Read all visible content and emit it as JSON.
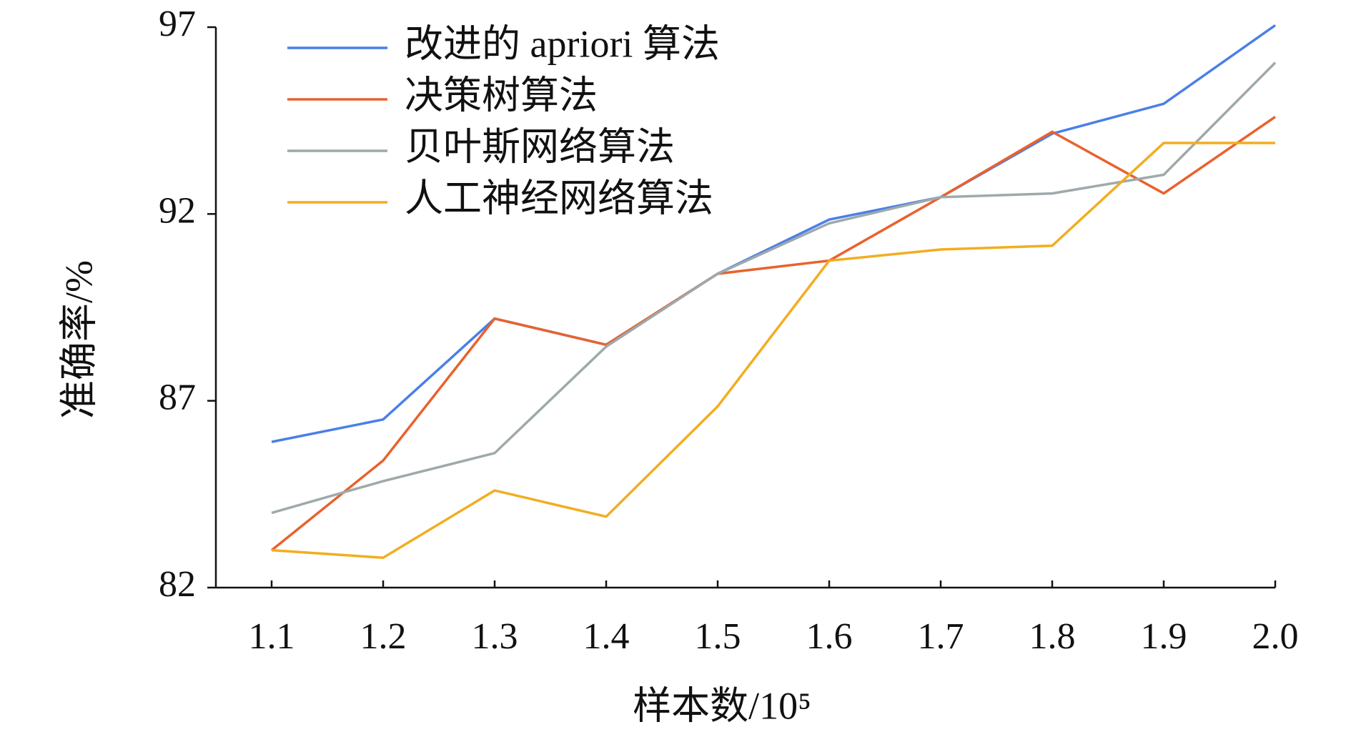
{
  "chart_data": {
    "type": "line",
    "x_label": "样本数/10⁵",
    "y_label": "准确率/%",
    "categories": [
      "1.1",
      "1.2",
      "1.3",
      "1.4",
      "1.5",
      "1.6",
      "1.7",
      "1.8",
      "1.9",
      "2.0"
    ],
    "series": [
      {
        "name": "改进的 apriori 算法",
        "color": "#4a7fe8",
        "values": [
          85.9,
          86.5,
          89.2,
          88.5,
          90.4,
          91.85,
          92.45,
          94.15,
          94.95,
          97.05
        ]
      },
      {
        "name": "决策树算法",
        "color": "#e8622e",
        "values": [
          83.0,
          85.4,
          89.2,
          88.5,
          90.4,
          90.75,
          92.45,
          94.2,
          92.55,
          94.6
        ]
      },
      {
        "name": "贝叶斯网络算法",
        "color": "#9ea9ab",
        "values": [
          84.0,
          84.85,
          85.6,
          88.45,
          90.4,
          91.75,
          92.45,
          92.55,
          93.05,
          96.05
        ]
      },
      {
        "name": "人工神经网络算法",
        "color": "#f2ad20",
        "values": [
          83.0,
          82.8,
          84.6,
          83.9,
          86.85,
          90.75,
          91.05,
          91.15,
          93.9,
          93.9
        ]
      }
    ],
    "ylim": [
      82,
      97
    ],
    "yticks": [
      82,
      87,
      92,
      97
    ],
    "grid": false,
    "legend": "top-left"
  }
}
